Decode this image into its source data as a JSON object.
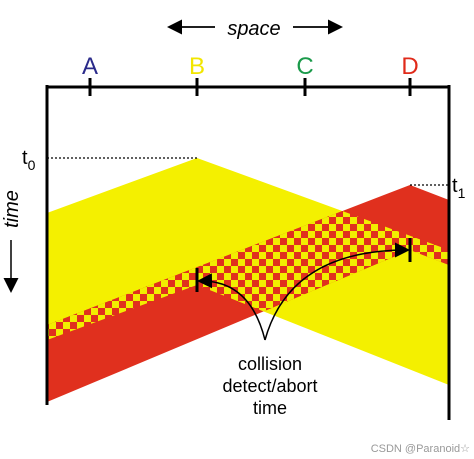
{
  "space_label": "space",
  "time_label": "time",
  "nodes": [
    {
      "label": "A",
      "color": "#2a2a8a"
    },
    {
      "label": "B",
      "color": "#f2e600"
    },
    {
      "label": "C",
      "color": "#1a9a4a"
    },
    {
      "label": "D",
      "color": "#e02a1a"
    }
  ],
  "times": [
    {
      "base": "t",
      "sub": "0"
    },
    {
      "base": "t",
      "sub": "1"
    }
  ],
  "annotation": [
    "collision",
    "detect/abort",
    "time"
  ],
  "watermark": "CSDN @Paranoid☆"
}
